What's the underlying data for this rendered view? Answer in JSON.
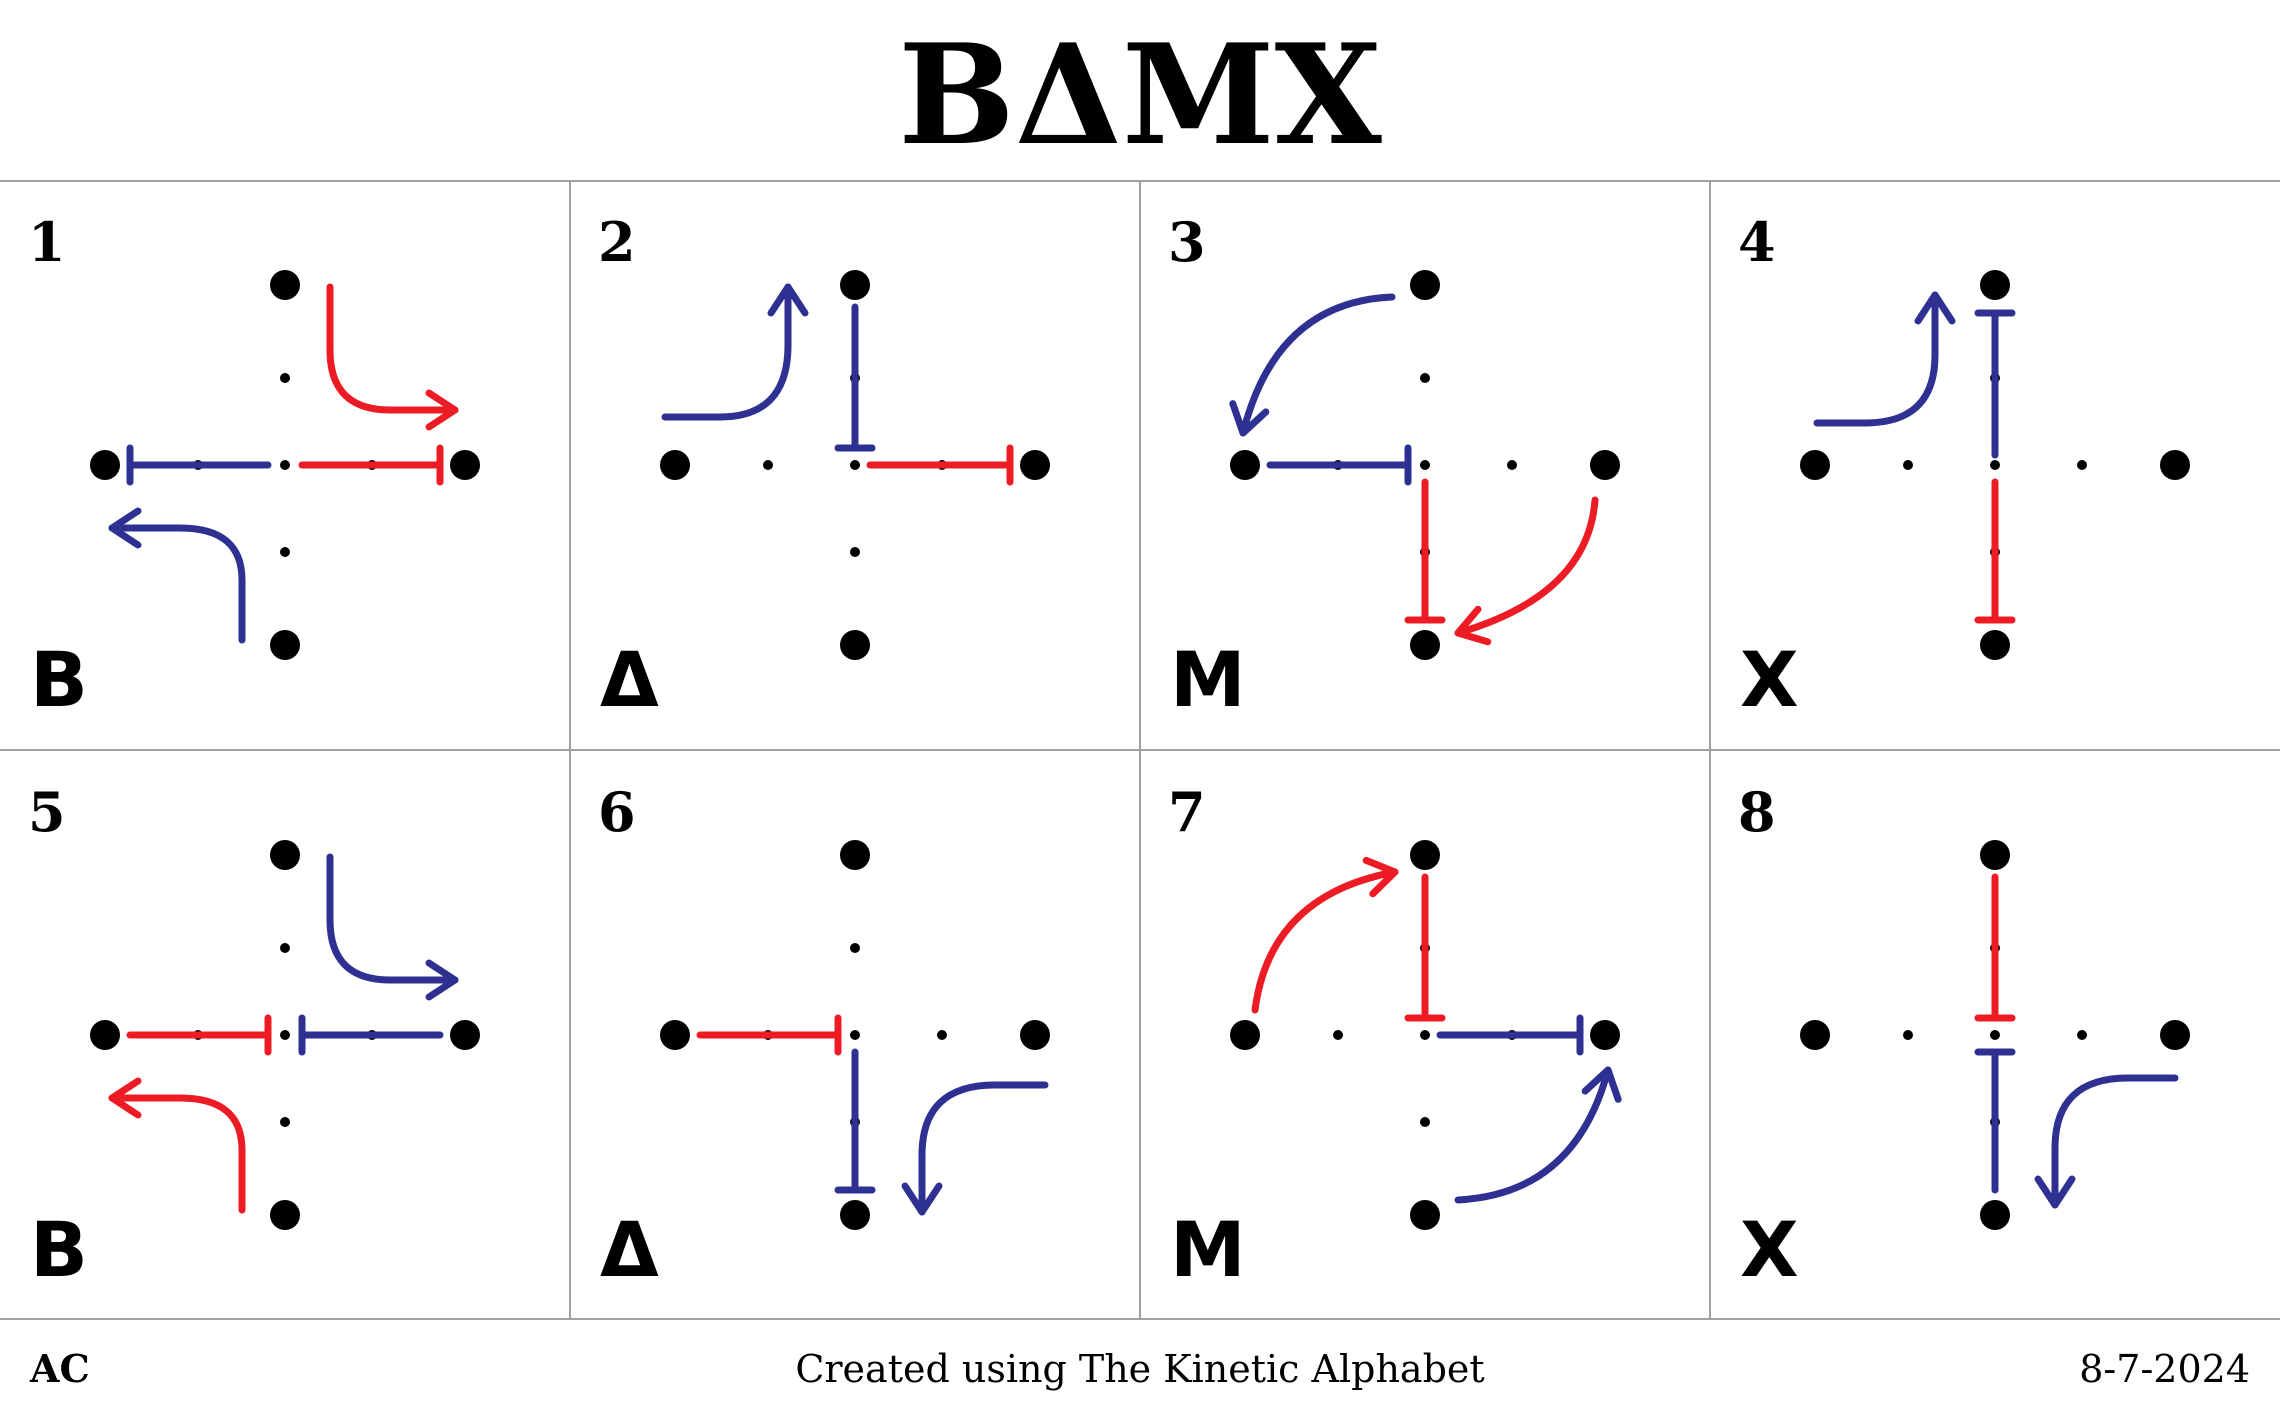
{
  "title": "BΔMX",
  "cells": [
    {
      "number": "1",
      "letter": "B"
    },
    {
      "number": "2",
      "letter": "Δ"
    },
    {
      "number": "3",
      "letter": "M"
    },
    {
      "number": "4",
      "letter": "X"
    },
    {
      "number": "5",
      "letter": "B"
    },
    {
      "number": "6",
      "letter": "Δ"
    },
    {
      "number": "7",
      "letter": "M"
    },
    {
      "number": "8",
      "letter": "X"
    }
  ],
  "colors": {
    "blue": "#2e3192",
    "red": "#ed1c24",
    "dot": "#000000",
    "grid": "#a0a0a0"
  },
  "footer": {
    "left": "AC",
    "center": "Created using The Kinetic Alphabet",
    "right": "8-7-2024"
  }
}
